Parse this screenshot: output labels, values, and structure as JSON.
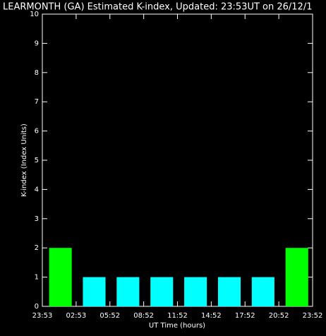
{
  "chart_data": {
    "type": "bar",
    "title": "LEARMONTH (GA) Estimated K-index, Updated: 23:53UT on 26/12/1",
    "xlabel": "UT Time (hours)",
    "ylabel": "K-index (Index Units)",
    "xticks": [
      "23:53",
      "02:53",
      "05:52",
      "08:52",
      "11:52",
      "14:52",
      "17:52",
      "20:52",
      "23:52"
    ],
    "values": [
      2,
      1,
      1,
      1,
      1,
      1,
      1,
      2
    ],
    "colors": [
      "#00ff00",
      "#00ffff",
      "#00ffff",
      "#00ffff",
      "#00ffff",
      "#00ffff",
      "#00ffff",
      "#00ff00"
    ],
    "ylim": [
      0,
      10
    ],
    "yticks": [
      0,
      1,
      2,
      3,
      4,
      5,
      6,
      7,
      8,
      9,
      10
    ]
  }
}
